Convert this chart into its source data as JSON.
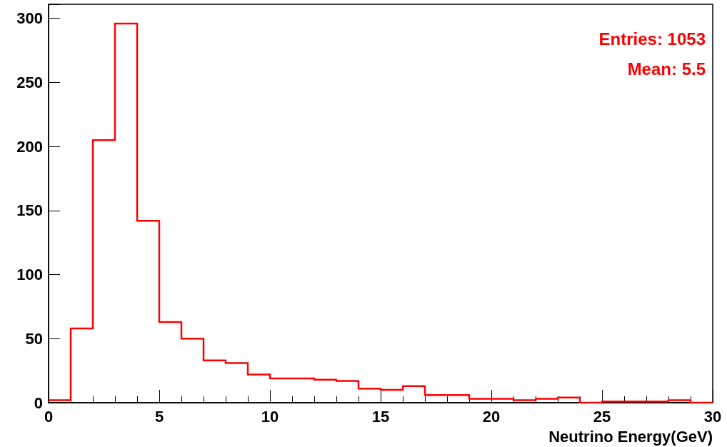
{
  "chart_data": {
    "type": "histogram",
    "xlabel": "Neutrino Energy(GeV)",
    "color": "#ff0000",
    "bins": [
      0,
      1,
      2,
      3,
      4,
      5,
      6,
      7,
      8,
      9,
      10,
      11,
      12,
      13,
      14,
      15,
      16,
      17,
      18,
      19,
      20,
      21,
      22,
      23,
      24,
      25,
      26,
      27,
      28,
      29,
      30
    ],
    "values": [
      2,
      58,
      205,
      296,
      142,
      63,
      50,
      33,
      31,
      22,
      19,
      19,
      18,
      17,
      11,
      10,
      13,
      6,
      6,
      3,
      3,
      2,
      3,
      4,
      0,
      1,
      1,
      1,
      2,
      0
    ],
    "xlim": [
      0,
      30
    ],
    "xticks": [
      0,
      5,
      10,
      15,
      20,
      25,
      30
    ],
    "ylim": [
      0,
      311
    ],
    "yticks": [
      0,
      50,
      100,
      150,
      200,
      250,
      300
    ],
    "annotations": [
      "Entries: 1053",
      "Mean: 5.5"
    ],
    "grid": false
  }
}
